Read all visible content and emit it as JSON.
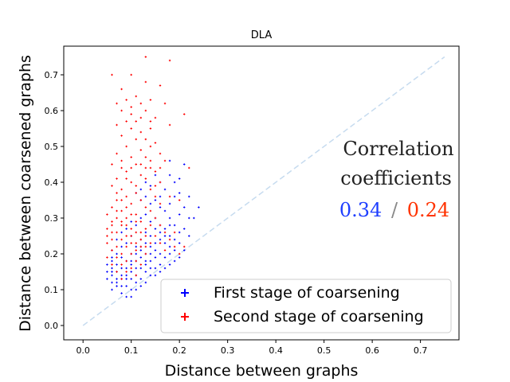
{
  "chart_data": {
    "type": "scatter",
    "title": "DLA",
    "xlabel": "Distance between graphs",
    "ylabel": "Distance between coarsened graphs",
    "xlim": [
      -0.04,
      0.78
    ],
    "ylim": [
      -0.04,
      0.78
    ],
    "xticks": [
      0.0,
      0.1,
      0.2,
      0.3,
      0.4,
      0.5,
      0.6,
      0.7
    ],
    "xtick_labels": [
      "0.0",
      "0.1",
      "0.2",
      "0.3",
      "0.4",
      "0.5",
      "0.6",
      "0.7"
    ],
    "yticks": [
      0.0,
      0.1,
      0.2,
      0.3,
      0.4,
      0.5,
      0.6,
      0.7
    ],
    "ytick_labels": [
      "0.0",
      "0.1",
      "0.2",
      "0.3",
      "0.4",
      "0.5",
      "0.6",
      "0.7"
    ],
    "diagonal": {
      "from": [
        0.0,
        0.0
      ],
      "to": [
        0.75,
        0.75
      ],
      "color": "#c6dbef",
      "style": "dashed"
    },
    "legend_position": "lower-right",
    "series": [
      {
        "name": "First stage of coarsening",
        "color": "#0000ff",
        "marker": "plus",
        "points": [
          [
            0.06,
            0.1
          ],
          [
            0.07,
            0.12
          ],
          [
            0.08,
            0.09
          ],
          [
            0.09,
            0.11
          ],
          [
            0.1,
            0.1
          ],
          [
            0.11,
            0.12
          ],
          [
            0.08,
            0.13
          ],
          [
            0.07,
            0.15
          ],
          [
            0.06,
            0.14
          ],
          [
            0.05,
            0.13
          ],
          [
            0.06,
            0.16
          ],
          [
            0.08,
            0.16
          ],
          [
            0.09,
            0.14
          ],
          [
            0.1,
            0.15
          ],
          [
            0.11,
            0.14
          ],
          [
            0.12,
            0.13
          ],
          [
            0.13,
            0.15
          ],
          [
            0.07,
            0.17
          ],
          [
            0.06,
            0.18
          ],
          [
            0.05,
            0.17
          ],
          [
            0.08,
            0.19
          ],
          [
            0.09,
            0.18
          ],
          [
            0.1,
            0.17
          ],
          [
            0.11,
            0.18
          ],
          [
            0.12,
            0.19
          ],
          [
            0.13,
            0.17
          ],
          [
            0.14,
            0.18
          ],
          [
            0.15,
            0.19
          ],
          [
            0.07,
            0.2
          ],
          [
            0.06,
            0.21
          ],
          [
            0.08,
            0.22
          ],
          [
            0.1,
            0.2
          ],
          [
            0.11,
            0.22
          ],
          [
            0.12,
            0.21
          ],
          [
            0.13,
            0.23
          ],
          [
            0.14,
            0.22
          ],
          [
            0.15,
            0.21
          ],
          [
            0.16,
            0.2
          ],
          [
            0.09,
            0.23
          ],
          [
            0.07,
            0.24
          ],
          [
            0.1,
            0.25
          ],
          [
            0.12,
            0.24
          ],
          [
            0.13,
            0.26
          ],
          [
            0.14,
            0.25
          ],
          [
            0.15,
            0.27
          ],
          [
            0.16,
            0.24
          ],
          [
            0.17,
            0.23
          ],
          [
            0.18,
            0.22
          ],
          [
            0.06,
            0.12
          ],
          [
            0.09,
            0.08
          ],
          [
            0.12,
            0.11
          ],
          [
            0.13,
            0.12
          ],
          [
            0.14,
            0.14
          ],
          [
            0.15,
            0.16
          ],
          [
            0.16,
            0.17
          ],
          [
            0.17,
            0.19
          ],
          [
            0.18,
            0.2
          ],
          [
            0.19,
            0.21
          ],
          [
            0.18,
            0.25
          ],
          [
            0.17,
            0.27
          ],
          [
            0.16,
            0.28
          ],
          [
            0.15,
            0.3
          ],
          [
            0.14,
            0.29
          ],
          [
            0.13,
            0.31
          ],
          [
            0.12,
            0.3
          ],
          [
            0.11,
            0.28
          ],
          [
            0.1,
            0.29
          ],
          [
            0.09,
            0.27
          ],
          [
            0.08,
            0.26
          ],
          [
            0.19,
            0.24
          ],
          [
            0.2,
            0.26
          ],
          [
            0.19,
            0.28
          ],
          [
            0.18,
            0.3
          ],
          [
            0.17,
            0.32
          ],
          [
            0.16,
            0.33
          ],
          [
            0.15,
            0.35
          ],
          [
            0.14,
            0.34
          ],
          [
            0.13,
            0.36
          ],
          [
            0.12,
            0.35
          ],
          [
            0.11,
            0.37
          ],
          [
            0.18,
            0.34
          ],
          [
            0.19,
            0.36
          ],
          [
            0.2,
            0.31
          ],
          [
            0.21,
            0.33
          ],
          [
            0.22,
            0.3
          ],
          [
            0.21,
            0.27
          ],
          [
            0.2,
            0.23
          ],
          [
            0.22,
            0.25
          ],
          [
            0.14,
            0.39
          ],
          [
            0.16,
            0.4
          ],
          [
            0.17,
            0.38
          ],
          [
            0.18,
            0.42
          ],
          [
            0.19,
            0.4
          ],
          [
            0.2,
            0.41
          ],
          [
            0.18,
            0.46
          ],
          [
            0.21,
            0.45
          ],
          [
            0.24,
            0.33
          ],
          [
            0.23,
            0.3
          ],
          [
            0.22,
            0.36
          ],
          [
            0.2,
            0.37
          ],
          [
            0.13,
            0.4
          ],
          [
            0.12,
            0.38
          ],
          [
            0.15,
            0.42
          ],
          [
            0.16,
            0.36
          ],
          [
            0.05,
            0.15
          ],
          [
            0.06,
            0.19
          ],
          [
            0.07,
            0.11
          ],
          [
            0.08,
            0.14
          ],
          [
            0.09,
            0.16
          ],
          [
            0.1,
            0.13
          ],
          [
            0.11,
            0.16
          ],
          [
            0.12,
            0.16
          ],
          [
            0.13,
            0.18
          ],
          [
            0.14,
            0.2
          ],
          [
            0.15,
            0.23
          ],
          [
            0.16,
            0.26
          ],
          [
            0.17,
            0.25
          ],
          [
            0.08,
            0.11
          ],
          [
            0.1,
            0.08
          ],
          [
            0.11,
            0.1
          ],
          [
            0.07,
            0.13
          ],
          [
            0.06,
            0.15
          ],
          [
            0.09,
            0.13
          ],
          [
            0.1,
            0.18
          ],
          [
            0.11,
            0.2
          ],
          [
            0.12,
            0.22
          ],
          [
            0.13,
            0.2
          ],
          [
            0.14,
            0.16
          ],
          [
            0.15,
            0.14
          ],
          [
            0.16,
            0.15
          ],
          [
            0.17,
            0.16
          ],
          [
            0.18,
            0.17
          ],
          [
            0.19,
            0.18
          ],
          [
            0.2,
            0.19
          ],
          [
            0.21,
            0.21
          ],
          [
            0.18,
            0.28
          ]
        ]
      },
      {
        "name": "Second stage of coarsening",
        "color": "#ff0000",
        "marker": "plus",
        "points": [
          [
            0.06,
            0.7
          ],
          [
            0.13,
            0.75
          ],
          [
            0.18,
            0.74
          ],
          [
            0.1,
            0.7
          ],
          [
            0.13,
            0.68
          ],
          [
            0.16,
            0.67
          ],
          [
            0.08,
            0.66
          ],
          [
            0.11,
            0.64
          ],
          [
            0.07,
            0.62
          ],
          [
            0.09,
            0.63
          ],
          [
            0.12,
            0.62
          ],
          [
            0.14,
            0.63
          ],
          [
            0.17,
            0.62
          ],
          [
            0.08,
            0.6
          ],
          [
            0.1,
            0.59
          ],
          [
            0.13,
            0.6
          ],
          [
            0.09,
            0.57
          ],
          [
            0.11,
            0.57
          ],
          [
            0.15,
            0.58
          ],
          [
            0.21,
            0.59
          ],
          [
            0.18,
            0.56
          ],
          [
            0.07,
            0.56
          ],
          [
            0.1,
            0.55
          ],
          [
            0.12,
            0.54
          ],
          [
            0.14,
            0.55
          ],
          [
            0.08,
            0.53
          ],
          [
            0.11,
            0.52
          ],
          [
            0.13,
            0.52
          ],
          [
            0.15,
            0.51
          ],
          [
            0.09,
            0.5
          ],
          [
            0.12,
            0.49
          ],
          [
            0.14,
            0.5
          ],
          [
            0.07,
            0.48
          ],
          [
            0.1,
            0.47
          ],
          [
            0.13,
            0.47
          ],
          [
            0.16,
            0.48
          ],
          [
            0.08,
            0.46
          ],
          [
            0.11,
            0.45
          ],
          [
            0.14,
            0.44
          ],
          [
            0.17,
            0.46
          ],
          [
            0.09,
            0.43
          ],
          [
            0.12,
            0.42
          ],
          [
            0.15,
            0.43
          ],
          [
            0.07,
            0.41
          ],
          [
            0.1,
            0.4
          ],
          [
            0.13,
            0.41
          ],
          [
            0.16,
            0.4
          ],
          [
            0.06,
            0.39
          ],
          [
            0.08,
            0.38
          ],
          [
            0.11,
            0.37
          ],
          [
            0.14,
            0.38
          ],
          [
            0.09,
            0.36
          ],
          [
            0.12,
            0.35
          ],
          [
            0.07,
            0.35
          ],
          [
            0.1,
            0.34
          ],
          [
            0.13,
            0.33
          ],
          [
            0.06,
            0.33
          ],
          [
            0.08,
            0.32
          ],
          [
            0.11,
            0.31
          ],
          [
            0.14,
            0.32
          ],
          [
            0.05,
            0.31
          ],
          [
            0.07,
            0.3
          ],
          [
            0.09,
            0.3
          ],
          [
            0.12,
            0.29
          ],
          [
            0.06,
            0.28
          ],
          [
            0.08,
            0.28
          ],
          [
            0.1,
            0.27
          ],
          [
            0.13,
            0.27
          ],
          [
            0.05,
            0.27
          ],
          [
            0.07,
            0.26
          ],
          [
            0.09,
            0.25
          ],
          [
            0.11,
            0.26
          ],
          [
            0.06,
            0.24
          ],
          [
            0.08,
            0.24
          ],
          [
            0.1,
            0.23
          ],
          [
            0.12,
            0.24
          ],
          [
            0.05,
            0.23
          ],
          [
            0.07,
            0.22
          ],
          [
            0.09,
            0.22
          ],
          [
            0.11,
            0.21
          ],
          [
            0.06,
            0.21
          ],
          [
            0.08,
            0.2
          ],
          [
            0.1,
            0.2
          ],
          [
            0.13,
            0.2
          ],
          [
            0.05,
            0.19
          ],
          [
            0.07,
            0.19
          ],
          [
            0.09,
            0.18
          ],
          [
            0.11,
            0.18
          ],
          [
            0.06,
            0.17
          ],
          [
            0.08,
            0.17
          ],
          [
            0.1,
            0.16
          ],
          [
            0.12,
            0.17
          ],
          [
            0.07,
            0.15
          ],
          [
            0.09,
            0.15
          ],
          [
            0.11,
            0.14
          ],
          [
            0.08,
            0.13
          ],
          [
            0.15,
            0.3
          ],
          [
            0.16,
            0.28
          ],
          [
            0.17,
            0.26
          ],
          [
            0.18,
            0.24
          ],
          [
            0.19,
            0.22
          ],
          [
            0.2,
            0.2
          ],
          [
            0.21,
            0.22
          ],
          [
            0.19,
            0.26
          ],
          [
            0.22,
            0.44
          ],
          [
            0.2,
            0.35
          ],
          [
            0.18,
            0.36
          ],
          [
            0.16,
            0.34
          ],
          [
            0.15,
            0.36
          ],
          [
            0.14,
            0.28
          ],
          [
            0.13,
            0.25
          ],
          [
            0.12,
            0.26
          ],
          [
            0.11,
            0.29
          ],
          [
            0.1,
            0.31
          ],
          [
            0.09,
            0.33
          ],
          [
            0.08,
            0.35
          ],
          [
            0.07,
            0.37
          ],
          [
            0.06,
            0.26
          ],
          [
            0.05,
            0.25
          ],
          [
            0.06,
            0.29
          ],
          [
            0.07,
            0.32
          ],
          [
            0.08,
            0.29
          ],
          [
            0.09,
            0.28
          ],
          [
            0.1,
            0.25
          ],
          [
            0.11,
            0.23
          ],
          [
            0.12,
            0.22
          ],
          [
            0.13,
            0.22
          ],
          [
            0.14,
            0.23
          ],
          [
            0.15,
            0.25
          ],
          [
            0.16,
            0.23
          ],
          [
            0.17,
            0.21
          ],
          [
            0.12,
            0.45
          ],
          [
            0.1,
            0.44
          ],
          [
            0.14,
            0.46
          ],
          [
            0.16,
            0.44
          ],
          [
            0.13,
            0.44
          ],
          [
            0.09,
            0.41
          ],
          [
            0.11,
            0.39
          ],
          [
            0.15,
            0.39
          ],
          [
            0.08,
            0.44
          ],
          [
            0.12,
            0.58
          ],
          [
            0.14,
            0.57
          ],
          [
            0.1,
            0.61
          ],
          [
            0.06,
            0.45
          ]
        ]
      }
    ],
    "annotation": {
      "lines": [
        "Correlation",
        "coefficients"
      ],
      "value_first": "0.34",
      "separator": "/",
      "value_second": "0.24",
      "color_first": "#1f3fff",
      "color_separator": "#888888",
      "color_second": "#ff3300"
    },
    "axis_color": "#000000",
    "diag_color": "#c6dbef"
  }
}
